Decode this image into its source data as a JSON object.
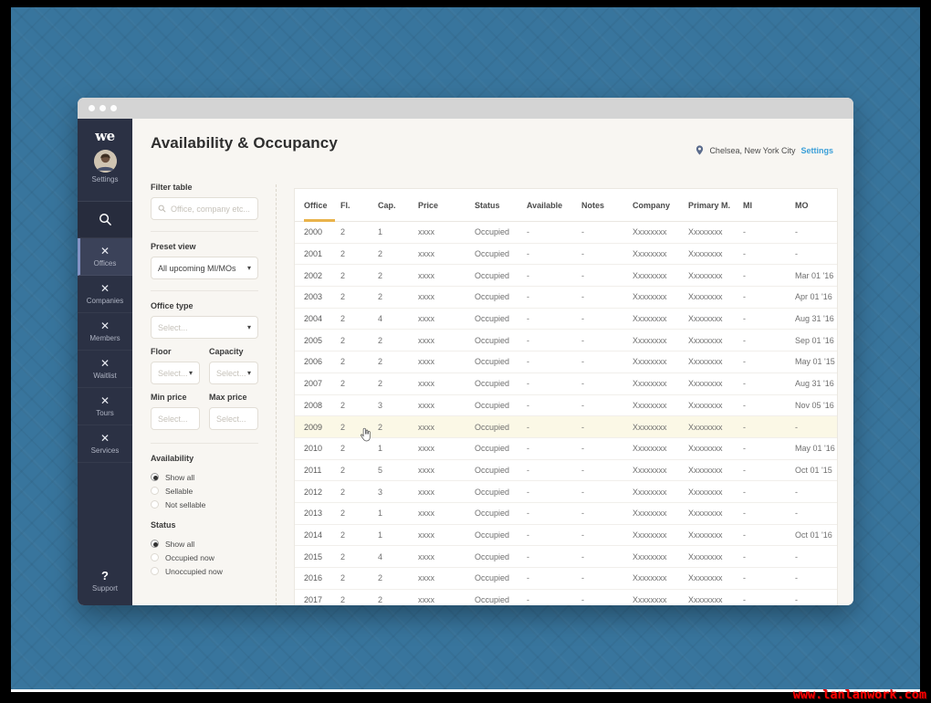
{
  "sidebar": {
    "logo": "we",
    "settings_label": "Settings",
    "items": [
      {
        "label": "Offices",
        "icon": "x-icon",
        "selected": true
      },
      {
        "label": "Companies",
        "icon": "x-icon",
        "selected": false
      },
      {
        "label": "Members",
        "icon": "x-icon",
        "selected": false
      },
      {
        "label": "Waitlist",
        "icon": "x-icon",
        "selected": false
      },
      {
        "label": "Tours",
        "icon": "x-icon",
        "selected": false
      },
      {
        "label": "Services",
        "icon": "x-icon",
        "selected": false
      }
    ],
    "support": {
      "icon": "?",
      "label": "Support"
    }
  },
  "header": {
    "title": "Availability & Occupancy",
    "location": "Chelsea, New York City",
    "settings_link": "Settings"
  },
  "filters": {
    "filter_table_label": "Filter table",
    "search_placeholder": "Office, company etc...",
    "preset_view": {
      "label": "Preset view",
      "value": "All upcoming MI/MOs"
    },
    "office_type": {
      "label": "Office type",
      "placeholder": "Select..."
    },
    "floor": {
      "label": "Floor",
      "placeholder": "Select..."
    },
    "capacity": {
      "label": "Capacity",
      "placeholder": "Select..."
    },
    "min_price": {
      "label": "Min price",
      "placeholder": "Select..."
    },
    "max_price": {
      "label": "Max price",
      "placeholder": "Select..."
    },
    "availability": {
      "label": "Availability",
      "options": [
        {
          "label": "Show all",
          "selected": true
        },
        {
          "label": "Sellable",
          "selected": false
        },
        {
          "label": "Not sellable",
          "selected": false
        }
      ]
    },
    "status": {
      "label": "Status",
      "options": [
        {
          "label": "Show all",
          "selected": true
        },
        {
          "label": "Occupied now",
          "selected": false
        },
        {
          "label": "Unoccupied now",
          "selected": false
        }
      ]
    }
  },
  "table": {
    "columns": [
      "Office",
      "Fl.",
      "Cap.",
      "Price",
      "Status",
      "Available",
      "Notes",
      "Company",
      "Primary M.",
      "MI",
      "MO"
    ],
    "sorted_column": "Office",
    "highlight_index": 9,
    "rows": [
      [
        "2000",
        "2",
        "1",
        "xxxx",
        "Occupied",
        "-",
        "-",
        "Xxxxxxxx",
        "Xxxxxxxx",
        "-",
        "-"
      ],
      [
        "2001",
        "2",
        "2",
        "xxxx",
        "Occupied",
        "-",
        "-",
        "Xxxxxxxx",
        "Xxxxxxxx",
        "-",
        "-"
      ],
      [
        "2002",
        "2",
        "2",
        "xxxx",
        "Occupied",
        "-",
        "-",
        "Xxxxxxxx",
        "Xxxxxxxx",
        "-",
        "Mar 01 '16"
      ],
      [
        "2003",
        "2",
        "2",
        "xxxx",
        "Occupied",
        "-",
        "-",
        "Xxxxxxxx",
        "Xxxxxxxx",
        "-",
        "Apr 01 '16"
      ],
      [
        "2004",
        "2",
        "4",
        "xxxx",
        "Occupied",
        "-",
        "-",
        "Xxxxxxxx",
        "Xxxxxxxx",
        "-",
        "Aug 31 '16"
      ],
      [
        "2005",
        "2",
        "2",
        "xxxx",
        "Occupied",
        "-",
        "-",
        "Xxxxxxxx",
        "Xxxxxxxx",
        "-",
        "Sep 01 '16"
      ],
      [
        "2006",
        "2",
        "2",
        "xxxx",
        "Occupied",
        "-",
        "-",
        "Xxxxxxxx",
        "Xxxxxxxx",
        "-",
        "May 01 '15"
      ],
      [
        "2007",
        "2",
        "2",
        "xxxx",
        "Occupied",
        "-",
        "-",
        "Xxxxxxxx",
        "Xxxxxxxx",
        "-",
        "Aug 31 '16"
      ],
      [
        "2008",
        "2",
        "3",
        "xxxx",
        "Occupied",
        "-",
        "-",
        "Xxxxxxxx",
        "Xxxxxxxx",
        "-",
        "Nov 05 '16"
      ],
      [
        "2009",
        "2",
        "2",
        "xxxx",
        "Occupied",
        "-",
        "-",
        "Xxxxxxxx",
        "Xxxxxxxx",
        "-",
        "-"
      ],
      [
        "2010",
        "2",
        "1",
        "xxxx",
        "Occupied",
        "-",
        "-",
        "Xxxxxxxx",
        "Xxxxxxxx",
        "-",
        "May 01 '16"
      ],
      [
        "2011",
        "2",
        "5",
        "xxxx",
        "Occupied",
        "-",
        "-",
        "Xxxxxxxx",
        "Xxxxxxxx",
        "-",
        "Oct 01 '15"
      ],
      [
        "2012",
        "2",
        "3",
        "xxxx",
        "Occupied",
        "-",
        "-",
        "Xxxxxxxx",
        "Xxxxxxxx",
        "-",
        "-"
      ],
      [
        "2013",
        "2",
        "1",
        "xxxx",
        "Occupied",
        "-",
        "-",
        "Xxxxxxxx",
        "Xxxxxxxx",
        "-",
        "-"
      ],
      [
        "2014",
        "2",
        "1",
        "xxxx",
        "Occupied",
        "-",
        "-",
        "Xxxxxxxx",
        "Xxxxxxxx",
        "-",
        "Oct 01 '16"
      ],
      [
        "2015",
        "2",
        "4",
        "xxxx",
        "Occupied",
        "-",
        "-",
        "Xxxxxxxx",
        "Xxxxxxxx",
        "-",
        "-"
      ],
      [
        "2016",
        "2",
        "2",
        "xxxx",
        "Occupied",
        "-",
        "-",
        "Xxxxxxxx",
        "Xxxxxxxx",
        "-",
        "-"
      ],
      [
        "2017",
        "2",
        "2",
        "xxxx",
        "Occupied",
        "-",
        "-",
        "Xxxxxxxx",
        "Xxxxxxxx",
        "-",
        "-"
      ]
    ]
  },
  "watermark": "www.lanlanwork.com",
  "colors": {
    "backdrop_blue": "#38759d",
    "sidebar": "#2b3144",
    "sidebar_selected": "#3b4259",
    "sidebar_accent": "#8393c5",
    "sort_indicator": "#e9b34b",
    "settings_link": "#3b9fd8",
    "row_highlight": "#fbf8e6",
    "watermark_red": "#fe0000"
  }
}
